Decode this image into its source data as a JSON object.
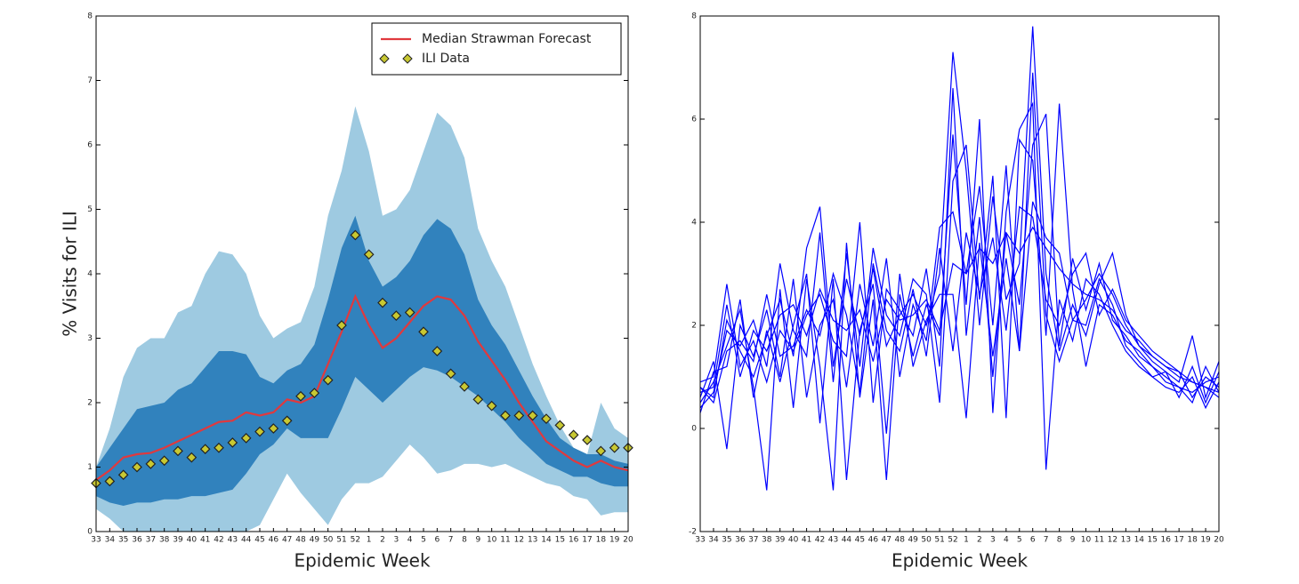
{
  "chart_data": [
    {
      "type": "line",
      "xlabel": "Epidemic Week",
      "ylabel": "% Visits for ILI",
      "categories": [
        "33",
        "34",
        "35",
        "36",
        "37",
        "38",
        "39",
        "40",
        "41",
        "42",
        "43",
        "44",
        "45",
        "46",
        "47",
        "48",
        "49",
        "50",
        "51",
        "52",
        "1",
        "2",
        "3",
        "4",
        "5",
        "6",
        "7",
        "8",
        "9",
        "10",
        "11",
        "12",
        "13",
        "14",
        "15",
        "16",
        "17",
        "18",
        "19",
        "20"
      ],
      "ylim": [
        0,
        8
      ],
      "yticks": [
        0,
        1,
        2,
        3,
        4,
        5,
        6,
        7,
        8
      ],
      "legend": "upper right",
      "bands": [
        {
          "color": "#9ecae1",
          "upper": [
            1.0,
            1.6,
            2.4,
            2.85,
            3.0,
            3.0,
            3.4,
            3.5,
            4.0,
            4.35,
            4.3,
            4.0,
            3.35,
            3.0,
            3.15,
            3.25,
            3.8,
            4.9,
            5.6,
            6.6,
            5.9,
            4.9,
            5.0,
            5.3,
            5.9,
            6.5,
            6.3,
            5.8,
            4.7,
            4.2,
            3.8,
            3.2,
            2.6,
            2.1,
            1.65,
            1.3,
            1.2,
            2.0,
            1.6,
            1.45
          ],
          "lower": [
            0.35,
            0.2,
            0.0,
            0.0,
            0.0,
            0.0,
            0.0,
            0.0,
            0.0,
            0.0,
            0.0,
            0.0,
            0.1,
            0.5,
            0.9,
            0.6,
            0.35,
            0.1,
            0.5,
            0.75,
            0.75,
            0.85,
            1.1,
            1.35,
            1.15,
            0.9,
            0.95,
            1.05,
            1.05,
            1.0,
            1.05,
            0.95,
            0.85,
            0.75,
            0.7,
            0.55,
            0.5,
            0.25,
            0.3,
            0.3
          ]
        },
        {
          "color": "#3182bd",
          "upper": [
            1.0,
            1.3,
            1.6,
            1.9,
            1.95,
            2.0,
            2.2,
            2.3,
            2.55,
            2.8,
            2.8,
            2.75,
            2.4,
            2.3,
            2.5,
            2.6,
            2.9,
            3.6,
            4.4,
            4.9,
            4.2,
            3.8,
            3.95,
            4.2,
            4.6,
            4.85,
            4.7,
            4.3,
            3.6,
            3.2,
            2.9,
            2.5,
            2.1,
            1.75,
            1.45,
            1.3,
            1.2,
            1.2,
            1.1,
            1.05
          ],
          "lower": [
            0.55,
            0.45,
            0.4,
            0.45,
            0.45,
            0.5,
            0.5,
            0.55,
            0.55,
            0.6,
            0.65,
            0.9,
            1.2,
            1.35,
            1.6,
            1.45,
            1.45,
            1.45,
            1.9,
            2.4,
            2.2,
            2.0,
            2.2,
            2.4,
            2.55,
            2.5,
            2.4,
            2.25,
            2.1,
            1.9,
            1.7,
            1.45,
            1.25,
            1.05,
            0.95,
            0.85,
            0.85,
            0.75,
            0.7,
            0.7
          ]
        }
      ],
      "series": [
        {
          "name": "Median Strawman Forecast",
          "color": "#e0393e",
          "values": [
            0.8,
            0.95,
            1.15,
            1.2,
            1.22,
            1.3,
            1.4,
            1.5,
            1.6,
            1.7,
            1.72,
            1.85,
            1.8,
            1.85,
            2.05,
            2.0,
            2.1,
            2.6,
            3.1,
            3.65,
            3.2,
            2.85,
            3.0,
            3.25,
            3.5,
            3.65,
            3.6,
            3.35,
            2.95,
            2.65,
            2.35,
            2.0,
            1.7,
            1.4,
            1.25,
            1.1,
            1.0,
            1.1,
            1.0,
            0.95
          ]
        },
        {
          "name": "ILI Data",
          "color": "#c8c832",
          "marker": "diamond",
          "values": [
            0.75,
            0.78,
            0.88,
            1.0,
            1.05,
            1.1,
            1.25,
            1.15,
            1.28,
            1.3,
            1.38,
            1.45,
            1.55,
            1.6,
            1.72,
            2.1,
            2.15,
            2.35,
            3.2,
            4.6,
            4.3,
            3.55,
            3.35,
            3.4,
            3.1,
            2.8,
            2.45,
            2.25,
            2.05,
            1.95,
            1.8,
            1.8,
            1.8,
            1.75,
            1.65,
            1.5,
            1.42,
            1.25,
            1.3,
            1.3
          ]
        }
      ]
    },
    {
      "type": "line",
      "xlabel": "Epidemic Week",
      "categories": [
        "33",
        "34",
        "35",
        "36",
        "37",
        "38",
        "39",
        "40",
        "41",
        "42",
        "43",
        "44",
        "45",
        "46",
        "47",
        "48",
        "49",
        "50",
        "51",
        "52",
        "1",
        "2",
        "3",
        "4",
        "5",
        "6",
        "7",
        "8",
        "9",
        "10",
        "11",
        "12",
        "13",
        "14",
        "15",
        "16",
        "17",
        "18",
        "19",
        "20"
      ],
      "ylim": [
        -2,
        8
      ],
      "yticks": [
        -2,
        0,
        2,
        4,
        6,
        8
      ],
      "series": [
        {
          "color": "#0000ff",
          "values": [
            0.8,
            0.6,
            2.1,
            1.5,
            1.0,
            1.8,
            2.5,
            1.4,
            3.5,
            4.3,
            1.2,
            2.9,
            1.8,
            3.1,
            1.6,
            2.2,
            2.6,
            2.0,
            3.0,
            7.3,
            5.0,
            2.0,
            4.5,
            2.5,
            3.2,
            7.8,
            3.0,
            1.5,
            2.4,
            1.8,
            2.8,
            3.4,
            2.2,
            1.6,
            1.3,
            1.1,
            0.9,
            1.8,
            0.6,
            1.3
          ]
        },
        {
          "color": "#0000ff",
          "values": [
            0.5,
            0.9,
            1.6,
            2.3,
            0.8,
            -1.2,
            2.7,
            0.4,
            2.9,
            1.2,
            -1.2,
            3.6,
            0.6,
            2.5,
            -1.0,
            2.6,
            1.4,
            2.4,
            1.8,
            5.7,
            2.4,
            6.0,
            0.3,
            4.2,
            5.8,
            6.3,
            -0.8,
            2.5,
            1.7,
            2.9,
            2.6,
            2.0,
            1.5,
            1.2,
            1.0,
            0.8,
            0.7,
            1.0,
            0.4,
            0.9
          ]
        },
        {
          "color": "#0000ff",
          "values": [
            0.9,
            1.0,
            2.8,
            1.2,
            1.7,
            0.9,
            1.9,
            1.5,
            2.2,
            2.6,
            1.7,
            1.4,
            4.0,
            0.5,
            2.7,
            2.3,
            1.8,
            3.1,
            1.2,
            6.6,
            1.8,
            4.1,
            1.0,
            3.8,
            2.4,
            5.5,
            6.1,
            1.6,
            3.3,
            2.3,
            3.2,
            2.1,
            1.8,
            1.4,
            1.2,
            0.9,
            0.8,
            0.5,
            1.2,
            0.7
          ]
        },
        {
          "color": "#0000ff",
          "values": [
            0.6,
            1.3,
            -0.4,
            2.0,
            1.4,
            2.3,
            1.0,
            2.9,
            0.6,
            2.0,
            2.5,
            0.8,
            2.8,
            1.6,
            3.3,
            1.0,
            2.4,
            1.7,
            3.9,
            4.2,
            3.0,
            4.7,
            2.0,
            5.1,
            1.5,
            4.4,
            3.7,
            3.4,
            2.1,
            2.5,
            3.0,
            2.6,
            2.0,
            1.6,
            1.4,
            1.2,
            1.0,
            0.9,
            0.8,
            0.6
          ]
        },
        {
          "color": "#0000ff",
          "values": [
            0.4,
            0.7,
            1.9,
            1.6,
            2.1,
            1.2,
            3.2,
            1.9,
            1.4,
            3.8,
            0.9,
            3.4,
            1.2,
            3.5,
            2.2,
            1.8,
            2.9,
            2.6,
            0.5,
            4.8,
            5.5,
            2.5,
            4.9,
            0.2,
            5.6,
            5.2,
            1.8,
            6.3,
            2.7,
            1.2,
            2.4,
            2.2,
            1.7,
            1.5,
            1.2,
            1.0,
            0.8,
            0.7,
            0.9,
            1.0
          ]
        },
        {
          "color": "#0000ff",
          "values": [
            0.7,
            0.8,
            2.4,
            1.0,
            1.9,
            1.5,
            2.2,
            2.4,
            1.8,
            2.7,
            2.1,
            1.9,
            2.3,
            1.3,
            2.5,
            2.1,
            2.2,
            2.5,
            1.9,
            3.2,
            3.0,
            3.5,
            3.2,
            3.8,
            3.4,
            3.9,
            3.5,
            3.1,
            2.8,
            2.6,
            2.5,
            2.3,
            1.9,
            1.7,
            1.4,
            1.2,
            1.1,
            0.9,
            0.8,
            0.7
          ]
        },
        {
          "color": "#0000ff",
          "values": [
            0.3,
            1.1,
            1.2,
            2.5,
            0.6,
            1.9,
            0.9,
            2.0,
            3.0,
            0.1,
            2.9,
            -1.0,
            1.9,
            2.8,
            -0.1,
            3.0,
            1.2,
            2.1,
            2.6,
            2.6,
            0.2,
            3.6,
            1.4,
            3.3,
            1.5,
            6.9,
            2.2,
            1.3,
            2.1,
            2.0,
            2.9,
            2.4,
            1.6,
            1.3,
            1.0,
            1.1,
            0.6,
            1.2,
            0.5,
            1.1
          ]
        },
        {
          "color": "#0000ff",
          "values": [
            0.8,
            0.5,
            1.5,
            1.7,
            1.3,
            2.6,
            1.4,
            1.6,
            2.3,
            1.8,
            3.0,
            2.2,
            0.7,
            3.2,
            1.9,
            1.5,
            2.7,
            1.4,
            3.5,
            1.5,
            3.8,
            2.6,
            3.7,
            1.9,
            4.3,
            4.1,
            2.5,
            2.0,
            3.0,
            3.4,
            2.2,
            2.7,
            2.1,
            1.8,
            1.5,
            1.3,
            1.1,
            0.6,
            1.0,
            0.8
          ]
        }
      ]
    }
  ]
}
